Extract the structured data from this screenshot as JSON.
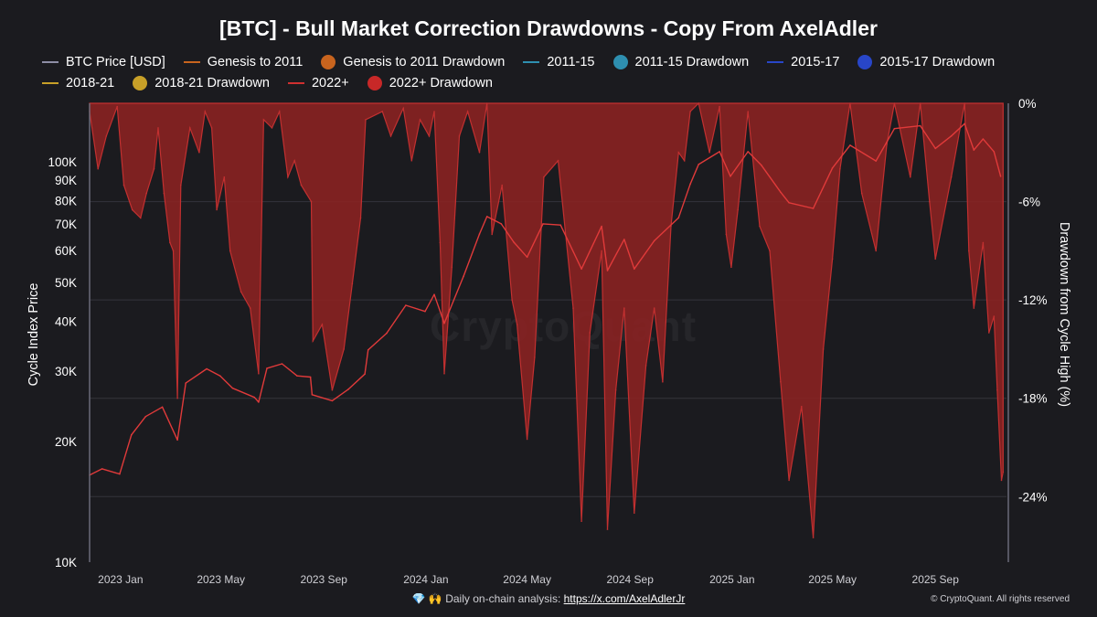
{
  "chart_data": {
    "type": "area",
    "title": "[BTC] - Bull Market Correction Drawdowns - Copy From AxelAdler",
    "legend": [
      {
        "label": "BTC Price [USD]",
        "kind": "line",
        "color": "#8e8ea6"
      },
      {
        "label": "Genesis to 2011",
        "kind": "line",
        "color": "#c8641e"
      },
      {
        "label": "Genesis to 2011 Drawdown",
        "kind": "dot",
        "color": "#c8641e"
      },
      {
        "label": "2011-15",
        "kind": "line",
        "color": "#2e8fb0"
      },
      {
        "label": "2011-15 Drawdown",
        "kind": "dot",
        "color": "#2e8fb0"
      },
      {
        "label": "2015-17",
        "kind": "line",
        "color": "#2846c8"
      },
      {
        "label": "2015-17 Drawdown",
        "kind": "dot",
        "color": "#2846c8"
      },
      {
        "label": "2018-21",
        "kind": "line",
        "color": "#c8a028"
      },
      {
        "label": "2018-21 Drawdown",
        "kind": "dot",
        "color": "#c8a028"
      },
      {
        "label": "2022+",
        "kind": "line",
        "color": "#d03030"
      },
      {
        "label": "2022+ Drawdown",
        "kind": "dot",
        "color": "#c82828"
      }
    ],
    "y_left": {
      "label": "Cycle Index Price",
      "scale": "log",
      "range": [
        10000,
        140000
      ],
      "ticks": [
        10000,
        20000,
        30000,
        40000,
        50000,
        60000,
        70000,
        80000,
        90000,
        100000
      ],
      "tick_labels": [
        "10K",
        "20K",
        "30K",
        "40K",
        "50K",
        "60K",
        "70K",
        "80K",
        "90K",
        "100K"
      ]
    },
    "y_right": {
      "label": "Drawdown from Cycle High (%)",
      "range": [
        -28,
        0
      ],
      "ticks": [
        0,
        -6,
        -12,
        -18,
        -24
      ],
      "tick_labels": [
        "0%",
        "-6%",
        "-12%",
        "-18%",
        "-24%"
      ]
    },
    "x_axis": {
      "range": [
        "2022-11-25",
        "2025-11-25"
      ],
      "ticks": [
        "2023-01-01",
        "2023-05-01",
        "2023-09-01",
        "2024-01-01",
        "2024-05-01",
        "2024-09-01",
        "2025-01-01",
        "2025-05-01",
        "2025-09-01"
      ],
      "tick_labels": [
        "2023 Jan",
        "2023 May",
        "2023 Sep",
        "2024 Jan",
        "2024 May",
        "2024 Sep",
        "2025 Jan",
        "2025 May",
        "2025 Sep"
      ]
    },
    "grid": true,
    "series": [
      {
        "name": "2022+",
        "axis": "left",
        "color": "#d03030",
        "points": [
          [
            "2022-11-25",
            16500
          ],
          [
            "2022-12-10",
            17100
          ],
          [
            "2022-12-31",
            16600
          ],
          [
            "2023-01-14",
            20800
          ],
          [
            "2023-01-31",
            23100
          ],
          [
            "2023-02-20",
            24400
          ],
          [
            "2023-03-10",
            20200
          ],
          [
            "2023-03-20",
            28000
          ],
          [
            "2023-04-14",
            30400
          ],
          [
            "2023-04-30",
            29200
          ],
          [
            "2023-05-15",
            27200
          ],
          [
            "2023-06-10",
            25800
          ],
          [
            "2023-06-15",
            25100
          ],
          [
            "2023-06-25",
            30500
          ],
          [
            "2023-07-13",
            31300
          ],
          [
            "2023-07-31",
            29200
          ],
          [
            "2023-08-16",
            29000
          ],
          [
            "2023-08-18",
            26200
          ],
          [
            "2023-09-11",
            25300
          ],
          [
            "2023-09-30",
            27000
          ],
          [
            "2023-10-20",
            29500
          ],
          [
            "2023-10-24",
            33900
          ],
          [
            "2023-11-15",
            37300
          ],
          [
            "2023-12-08",
            43800
          ],
          [
            "2023-12-31",
            42300
          ],
          [
            "2024-01-11",
            46600
          ],
          [
            "2024-01-23",
            39500
          ],
          [
            "2024-02-15",
            51800
          ],
          [
            "2024-03-05",
            66000
          ],
          [
            "2024-03-14",
            73000
          ],
          [
            "2024-03-31",
            70000
          ],
          [
            "2024-04-15",
            63000
          ],
          [
            "2024-05-01",
            57800
          ],
          [
            "2024-05-20",
            70000
          ],
          [
            "2024-06-10",
            69500
          ],
          [
            "2024-07-05",
            54000
          ],
          [
            "2024-07-29",
            69000
          ],
          [
            "2024-08-05",
            53500
          ],
          [
            "2024-08-25",
            64000
          ],
          [
            "2024-09-06",
            54000
          ],
          [
            "2024-09-30",
            63500
          ],
          [
            "2024-10-29",
            72500
          ],
          [
            "2024-11-12",
            88000
          ],
          [
            "2024-11-22",
            98500
          ],
          [
            "2024-12-17",
            106000
          ],
          [
            "2024-12-30",
            92000
          ],
          [
            "2025-01-20",
            106000
          ],
          [
            "2025-02-05",
            98000
          ],
          [
            "2025-02-28",
            84000
          ],
          [
            "2025-03-10",
            79000
          ],
          [
            "2025-04-08",
            76500
          ],
          [
            "2025-05-01",
            96500
          ],
          [
            "2025-05-22",
            110000
          ],
          [
            "2025-06-22",
            100500
          ],
          [
            "2025-07-14",
            121000
          ],
          [
            "2025-08-14",
            123000
          ],
          [
            "2025-09-01",
            108000
          ],
          [
            "2025-09-20",
            116000
          ],
          [
            "2025-10-06",
            124500
          ],
          [
            "2025-10-17",
            107000
          ],
          [
            "2025-10-28",
            114000
          ],
          [
            "2025-11-10",
            106000
          ],
          [
            "2025-11-18",
            92000
          ]
        ]
      },
      {
        "name": "2022+ Drawdown",
        "axis": "right",
        "color": "#c82828",
        "points": [
          [
            "2022-11-25",
            -0.5
          ],
          [
            "2022-12-05",
            -4.0
          ],
          [
            "2022-12-15",
            -2.0
          ],
          [
            "2022-12-28",
            -0.2
          ],
          [
            "2023-01-05",
            -5.0
          ],
          [
            "2023-01-15",
            -6.5
          ],
          [
            "2023-01-25",
            -7.0
          ],
          [
            "2023-02-01",
            -5.5
          ],
          [
            "2023-02-10",
            -4.0
          ],
          [
            "2023-02-15",
            -1.5
          ],
          [
            "2023-02-22",
            -5.5
          ],
          [
            "2023-03-01",
            -8.5
          ],
          [
            "2023-03-05",
            -9.0
          ],
          [
            "2023-03-10",
            -18.0
          ],
          [
            "2023-03-14",
            -5.0
          ],
          [
            "2023-03-25",
            -1.5
          ],
          [
            "2023-04-05",
            -3.0
          ],
          [
            "2023-04-12",
            -0.5
          ],
          [
            "2023-04-20",
            -1.5
          ],
          [
            "2023-04-26",
            -6.5
          ],
          [
            "2023-05-05",
            -4.5
          ],
          [
            "2023-05-12",
            -9.0
          ],
          [
            "2023-05-25",
            -11.5
          ],
          [
            "2023-06-05",
            -12.5
          ],
          [
            "2023-06-15",
            -16.5
          ],
          [
            "2023-06-21",
            -1.0
          ],
          [
            "2023-07-01",
            -1.5
          ],
          [
            "2023-07-10",
            -0.5
          ],
          [
            "2023-07-20",
            -4.5
          ],
          [
            "2023-07-28",
            -3.5
          ],
          [
            "2023-08-05",
            -5.0
          ],
          [
            "2023-08-17",
            -6.0
          ],
          [
            "2023-08-19",
            -14.5
          ],
          [
            "2023-08-30",
            -13.5
          ],
          [
            "2023-09-11",
            -17.5
          ],
          [
            "2023-09-25",
            -15.0
          ],
          [
            "2023-10-05",
            -11.0
          ],
          [
            "2023-10-15",
            -7.0
          ],
          [
            "2023-10-21",
            -1.0
          ],
          [
            "2023-11-10",
            -0.5
          ],
          [
            "2023-11-20",
            -2.0
          ],
          [
            "2023-12-05",
            -0.3
          ],
          [
            "2023-12-15",
            -3.5
          ],
          [
            "2023-12-25",
            -1.0
          ],
          [
            "2024-01-05",
            -2.0
          ],
          [
            "2024-01-11",
            -0.5
          ],
          [
            "2024-01-18",
            -8.5
          ],
          [
            "2024-01-23",
            -16.5
          ],
          [
            "2024-02-01",
            -10.0
          ],
          [
            "2024-02-10",
            -2.0
          ],
          [
            "2024-02-20",
            -0.5
          ],
          [
            "2024-03-05",
            -3.0
          ],
          [
            "2024-03-14",
            0.0
          ],
          [
            "2024-03-20",
            -8.0
          ],
          [
            "2024-04-01",
            -5.0
          ],
          [
            "2024-04-13",
            -12.0
          ],
          [
            "2024-04-19",
            -13.5
          ],
          [
            "2024-05-01",
            -20.5
          ],
          [
            "2024-05-10",
            -15.5
          ],
          [
            "2024-05-21",
            -4.5
          ],
          [
            "2024-06-07",
            -3.5
          ],
          [
            "2024-06-25",
            -12.5
          ],
          [
            "2024-07-05",
            -25.5
          ],
          [
            "2024-07-15",
            -14.0
          ],
          [
            "2024-07-29",
            -9.0
          ],
          [
            "2024-08-05",
            -26.0
          ],
          [
            "2024-08-15",
            -17.5
          ],
          [
            "2024-08-25",
            -12.5
          ],
          [
            "2024-09-06",
            -25.0
          ],
          [
            "2024-09-20",
            -16.0
          ],
          [
            "2024-09-30",
            -12.5
          ],
          [
            "2024-10-10",
            -17.0
          ],
          [
            "2024-10-20",
            -7.5
          ],
          [
            "2024-10-29",
            -3.0
          ],
          [
            "2024-11-05",
            -3.5
          ],
          [
            "2024-11-12",
            -0.5
          ],
          [
            "2024-11-22",
            0.0
          ],
          [
            "2024-12-05",
            -3.0
          ],
          [
            "2024-12-17",
            -0.2
          ],
          [
            "2024-12-25",
            -8.0
          ],
          [
            "2024-12-31",
            -10.0
          ],
          [
            "2025-01-08",
            -6.5
          ],
          [
            "2025-01-20",
            -0.5
          ],
          [
            "2025-02-03",
            -7.5
          ],
          [
            "2025-02-15",
            -9.0
          ],
          [
            "2025-02-28",
            -17.0
          ],
          [
            "2025-03-10",
            -23.0
          ],
          [
            "2025-03-25",
            -18.5
          ],
          [
            "2025-04-08",
            -26.5
          ],
          [
            "2025-04-20",
            -15.0
          ],
          [
            "2025-05-01",
            -9.5
          ],
          [
            "2025-05-10",
            -4.0
          ],
          [
            "2025-05-22",
            0.0
          ],
          [
            "2025-06-05",
            -5.5
          ],
          [
            "2025-06-22",
            -9.0
          ],
          [
            "2025-07-05",
            -2.5
          ],
          [
            "2025-07-14",
            0.0
          ],
          [
            "2025-08-02",
            -4.5
          ],
          [
            "2025-08-14",
            0.0
          ],
          [
            "2025-08-25",
            -6.0
          ],
          [
            "2025-09-01",
            -9.5
          ],
          [
            "2025-09-20",
            -4.5
          ],
          [
            "2025-10-06",
            0.0
          ],
          [
            "2025-10-11",
            -9.0
          ],
          [
            "2025-10-17",
            -12.5
          ],
          [
            "2025-10-28",
            -8.5
          ],
          [
            "2025-11-04",
            -14.0
          ],
          [
            "2025-11-10",
            -13.0
          ],
          [
            "2025-11-14",
            -17.5
          ],
          [
            "2025-11-19",
            -23.0
          ],
          [
            "2025-11-21",
            -22.5
          ]
        ]
      }
    ]
  },
  "watermark": "CryptoQuant",
  "footer": {
    "icons": "💎 🙌",
    "text": "Daily on-chain analysis: ",
    "link": "https://x.com/AxelAdlerJr"
  },
  "copyright": "© CryptoQuant. All rights reserved"
}
